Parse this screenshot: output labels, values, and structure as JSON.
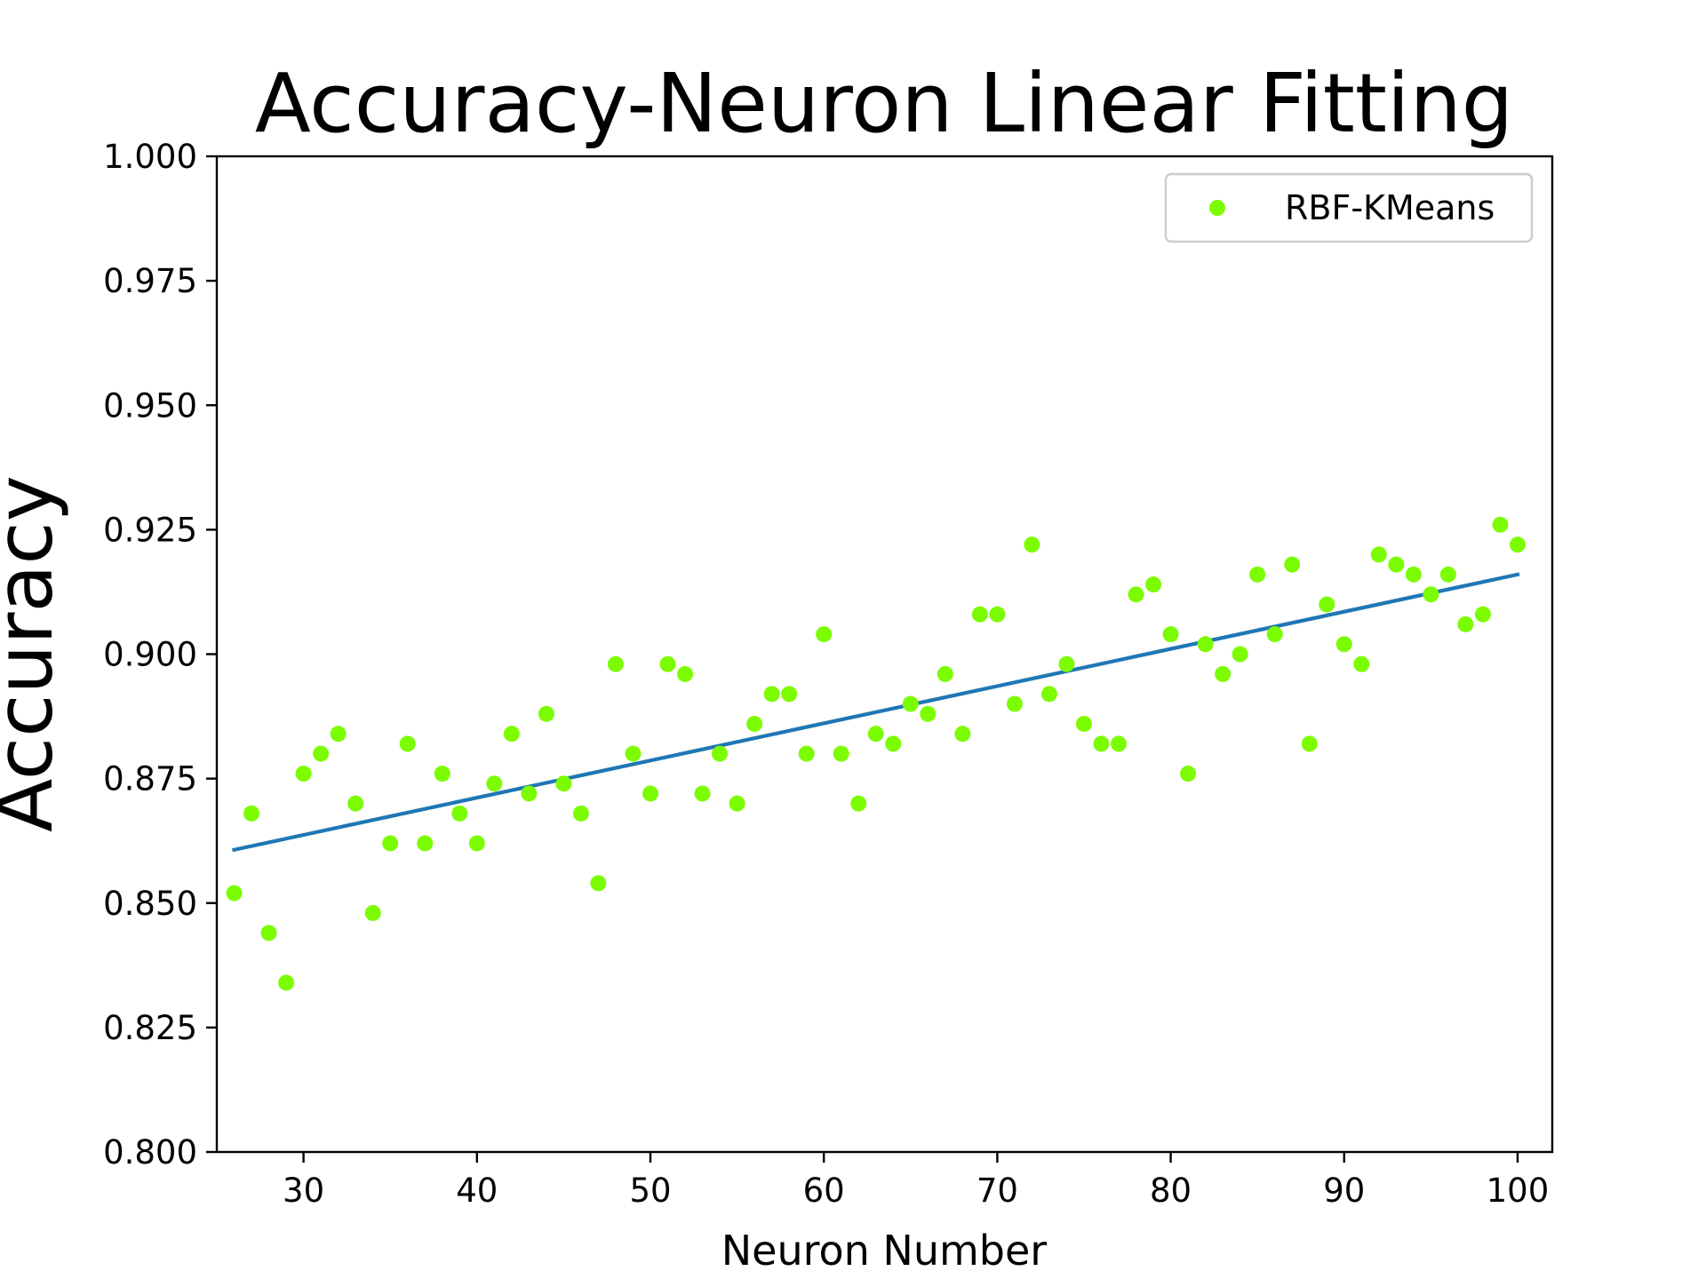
{
  "chart_data": {
    "type": "scatter",
    "title": "Accuracy-Neuron Linear Fitting",
    "xlabel": "Neuron Number",
    "ylabel": "Accuracy",
    "xlim": [
      25,
      102
    ],
    "ylim": [
      0.8,
      1.0
    ],
    "x_ticks": [
      30,
      40,
      50,
      60,
      70,
      80,
      90,
      100
    ],
    "x_tick_labels": [
      "30",
      "40",
      "50",
      "60",
      "70",
      "80",
      "90",
      "100"
    ],
    "y_ticks": [
      0.8,
      0.825,
      0.85,
      0.875,
      0.9,
      0.925,
      0.95,
      0.975,
      1.0
    ],
    "y_tick_labels": [
      "0.800",
      "0.825",
      "0.850",
      "0.875",
      "0.900",
      "0.925",
      "0.950",
      "0.975",
      "1.000"
    ],
    "grid": false,
    "legend_position": "top-right",
    "series": [
      {
        "name": "RBF-KMeans",
        "color": "#7cfc00",
        "x": [
          26,
          27,
          28,
          29,
          30,
          31,
          32,
          33,
          34,
          35,
          36,
          37,
          38,
          39,
          40,
          41,
          42,
          43,
          44,
          45,
          46,
          47,
          48,
          49,
          50,
          51,
          52,
          53,
          54,
          55,
          56,
          57,
          58,
          59,
          60,
          61,
          62,
          63,
          64,
          65,
          66,
          67,
          68,
          69,
          70,
          71,
          72,
          73,
          74,
          75,
          76,
          77,
          78,
          79,
          80,
          81,
          82,
          83,
          84,
          85,
          86,
          87,
          88,
          89,
          90,
          91,
          92,
          93,
          94,
          95,
          96,
          97,
          98,
          99,
          100
        ],
        "y": [
          0.852,
          0.868,
          0.844,
          0.834,
          0.876,
          0.88,
          0.884,
          0.87,
          0.848,
          0.862,
          0.882,
          0.862,
          0.876,
          0.868,
          0.862,
          0.874,
          0.884,
          0.872,
          0.888,
          0.874,
          0.868,
          0.854,
          0.898,
          0.88,
          0.872,
          0.898,
          0.896,
          0.872,
          0.88,
          0.87,
          0.886,
          0.892,
          0.892,
          0.88,
          0.904,
          0.88,
          0.87,
          0.884,
          0.882,
          0.89,
          0.888,
          0.896,
          0.884,
          0.908,
          0.908,
          0.89,
          0.922,
          0.892,
          0.898,
          0.886,
          0.882,
          0.882,
          0.912,
          0.914,
          0.904,
          0.876,
          0.902,
          0.896,
          0.9,
          0.916,
          0.904,
          0.918,
          0.882,
          0.91,
          0.902,
          0.898,
          0.92,
          0.918,
          0.916,
          0.912,
          0.916,
          0.906,
          0.908,
          0.926,
          0.922
        ]
      }
    ],
    "fit_line": {
      "color": "#1f77b4",
      "x": [
        26,
        100
      ],
      "y": [
        0.8607,
        0.916
      ]
    }
  }
}
